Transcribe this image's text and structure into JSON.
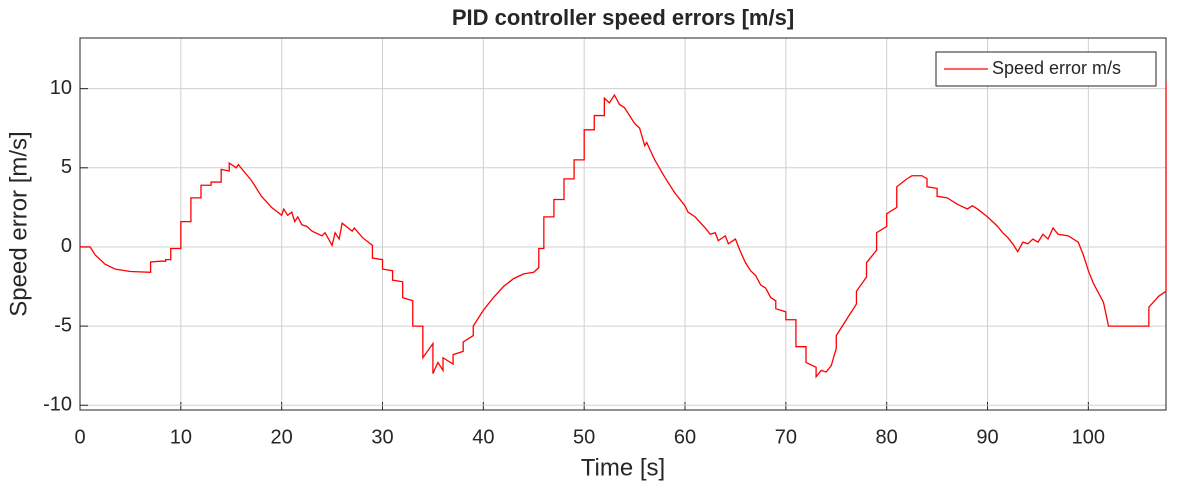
{
  "chart_data": {
    "type": "line",
    "title": "PID controller speed errors [m/s]",
    "x_label": "Time [s]",
    "y_label": "Speed error [m/s]",
    "x": [
      0,
      1,
      1.5,
      2.5,
      3.5,
      5,
      7,
      7,
      8,
      8.5,
      8.5,
      9,
      9,
      10,
      10,
      11,
      11,
      12,
      12,
      13,
      13,
      14,
      14,
      14.8,
      14.8,
      15.5,
      15.7,
      17,
      18,
      19,
      20,
      20.2,
      20.6,
      21,
      21.3,
      21.6,
      22,
      22.5,
      23,
      24,
      24.3,
      25,
      25.3,
      25.7,
      26,
      27,
      27.2,
      28,
      29,
      29,
      30,
      30,
      31,
      31,
      32,
      32,
      33,
      33,
      34,
      34,
      35,
      35,
      35.5,
      36,
      36,
      37,
      37,
      38,
      38,
      39,
      39,
      40,
      41,
      42,
      43,
      44,
      45,
      45.5,
      45.5,
      46,
      46,
      47,
      47,
      48,
      48,
      49,
      49,
      50,
      50,
      51,
      51,
      52,
      52,
      52.5,
      53,
      53.5,
      54,
      55,
      55.5,
      56,
      56.2,
      57,
      58,
      59,
      59.5,
      60,
      60.3,
      61,
      62,
      62.5,
      63,
      63.3,
      64,
      64.3,
      65,
      65.5,
      66,
      66.5,
      67,
      67.5,
      68,
      68.5,
      69,
      69,
      70,
      70,
      71,
      71,
      72,
      72,
      73,
      73,
      73.5,
      74,
      74.5,
      75,
      75,
      76,
      77,
      77,
      78,
      78,
      79,
      79,
      80,
      80,
      81,
      81,
      82,
      82.5,
      83.5,
      84,
      84,
      85,
      85,
      86,
      87,
      88,
      88.5,
      89,
      90,
      91,
      91.5,
      92,
      92.5,
      93,
      93.5,
      94,
      94.5,
      95,
      95.5,
      96,
      96.5,
      97,
      98,
      99,
      99.5,
      100,
      100.5,
      101,
      101.5,
      102,
      106,
      106,
      107,
      107.7,
      107.7
    ],
    "series": [
      {
        "name": "Speed error m/s",
        "color": "#ff0000",
        "values": [
          0,
          0,
          -0.5,
          -1.1,
          -1.4,
          -1.55,
          -1.6,
          -0.95,
          -0.9,
          -0.9,
          -0.8,
          -0.8,
          -0.1,
          -0.1,
          1.6,
          1.6,
          3.1,
          3.1,
          3.9,
          3.9,
          4.1,
          4.1,
          4.9,
          4.8,
          5.3,
          5.0,
          5.2,
          4.2,
          3.2,
          2.5,
          2.0,
          2.4,
          2.0,
          2.2,
          1.6,
          1.9,
          1.4,
          1.3,
          1.0,
          0.7,
          0.9,
          0.1,
          0.9,
          0.5,
          1.5,
          1.0,
          1.2,
          0.6,
          0.1,
          -0.7,
          -0.8,
          -1.4,
          -1.5,
          -2.1,
          -2.2,
          -3.2,
          -3.4,
          -5.0,
          -5.0,
          -7.0,
          -6.1,
          -8.0,
          -7.3,
          -7.8,
          -7.0,
          -7.4,
          -6.8,
          -6.6,
          -6.0,
          -5.6,
          -5.0,
          -4.0,
          -3.2,
          -2.5,
          -2.0,
          -1.7,
          -1.6,
          -1.3,
          -0.1,
          -0.1,
          1.9,
          1.9,
          3.0,
          3.0,
          4.3,
          4.3,
          5.5,
          5.5,
          7.4,
          7.4,
          8.3,
          8.3,
          9.4,
          9.1,
          9.6,
          9.0,
          8.8,
          7.8,
          7.5,
          6.4,
          6.6,
          5.5,
          4.4,
          3.4,
          3.0,
          2.6,
          2.2,
          1.9,
          1.2,
          0.8,
          0.9,
          0.4,
          0.7,
          0.2,
          0.5,
          -0.3,
          -1.0,
          -1.5,
          -1.8,
          -2.4,
          -2.6,
          -3.2,
          -3.4,
          -3.9,
          -4.1,
          -4.6,
          -4.6,
          -6.3,
          -6.3,
          -7.3,
          -7.6,
          -8.2,
          -7.8,
          -7.9,
          -7.5,
          -6.4,
          -5.6,
          -4.6,
          -3.6,
          -2.8,
          -1.9,
          -1.0,
          -0.2,
          0.9,
          1.3,
          2.1,
          2.5,
          3.8,
          4.3,
          4.5,
          4.5,
          4.3,
          3.8,
          3.7,
          3.2,
          3.1,
          2.7,
          2.4,
          2.6,
          2.4,
          1.9,
          1.3,
          0.9,
          0.6,
          0.2,
          -0.3,
          0.3,
          0.2,
          0.5,
          0.3,
          0.8,
          0.5,
          1.2,
          0.8,
          0.7,
          0.3,
          -0.5,
          -1.5,
          -2.3,
          -2.9,
          -3.5,
          -5.0,
          -5.0,
          -3.8,
          -3.1,
          -2.8,
          10.4
        ]
      }
    ],
    "xlim": [
      0,
      107.7
    ],
    "ylim": [
      -10.3,
      13.2
    ],
    "xticks": [
      0,
      10,
      20,
      30,
      40,
      50,
      60,
      70,
      80,
      90,
      100
    ],
    "yticks": [
      -10,
      -5,
      0,
      5,
      10
    ],
    "grid": true,
    "legend": "northeast"
  }
}
